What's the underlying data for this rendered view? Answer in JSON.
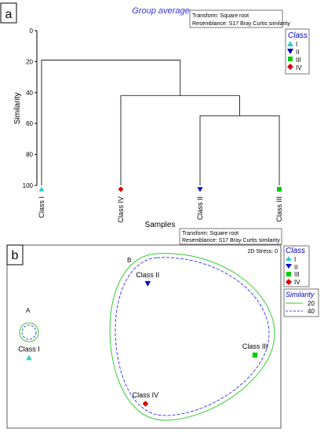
{
  "colors": {
    "class_I": "#33cccc",
    "class_II": "#0000cc",
    "class_III": "#00cc00",
    "class_IV": "#dd0000",
    "title": "#3333dd",
    "contour_20": "#33cc33",
    "contour_40": "#4444ee"
  },
  "icons": {
    "class_I": "triangle-up",
    "class_II": "triangle-down",
    "class_III": "square",
    "class_IV": "diamond"
  },
  "chart_data": [
    {
      "type": "dendrogram",
      "panel_label": "a",
      "title": "Group average",
      "info": [
        "Transform: Square root",
        "Resemblance: S17 Bray Curtis similarity"
      ],
      "xlabel": "Samples",
      "ylabel": "Similarity",
      "ylim": [
        0,
        100
      ],
      "yticks": [
        0,
        20,
        40,
        60,
        80,
        100
      ],
      "leaves": [
        "Class I",
        "Class IV",
        "Class II",
        "Class III"
      ],
      "leaf_classes": [
        "I",
        "IV",
        "II",
        "III"
      ],
      "merges": [
        {
          "pair": [
            "Class II",
            "Class III"
          ],
          "similarity": 55
        },
        {
          "pair": [
            "Class IV",
            "Class II+III"
          ],
          "similarity": 42
        },
        {
          "pair": [
            "Class I",
            "Class IV+II+III"
          ],
          "similarity": 19
        }
      ],
      "legend": {
        "title": "Class",
        "items": [
          "I",
          "II",
          "III",
          "IV"
        ],
        "position": "top-right"
      }
    },
    {
      "type": "scatter",
      "subtype": "nMDS",
      "panel_label": "b",
      "info": [
        "Transform: Square root",
        "Resemblance: S17 Bray Curtis similarity"
      ],
      "stress": "2D Stress: 0",
      "points": [
        {
          "label": "Class I",
          "class": "I",
          "x": 0.0,
          "y": 0.34
        },
        {
          "label": "Class II",
          "class": "II",
          "x": 0.52,
          "y": 0.89
        },
        {
          "label": "Class III",
          "class": "III",
          "x": 0.99,
          "y": 0.36
        },
        {
          "label": "Class IV",
          "class": "IV",
          "x": 0.51,
          "y": 0.0
        }
      ],
      "group_labels": [
        "A",
        "B"
      ],
      "groups": {
        "A": [
          "Class I"
        ],
        "B": [
          "Class II",
          "Class III",
          "Class IV"
        ]
      },
      "legend": {
        "title": "Class",
        "items": [
          "I",
          "II",
          "III",
          "IV"
        ],
        "position": "right"
      },
      "similarity_legend": {
        "title": "Similarity",
        "items": [
          "20",
          "40"
        ],
        "position": "right"
      }
    }
  ]
}
